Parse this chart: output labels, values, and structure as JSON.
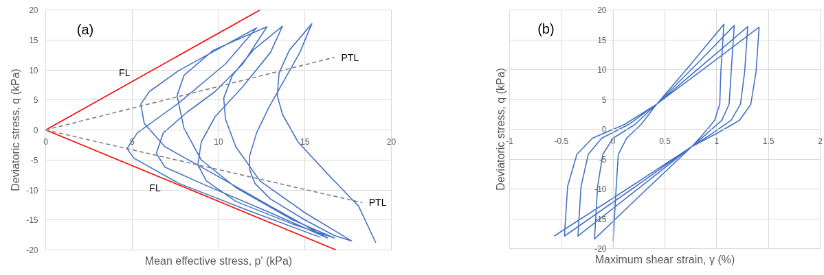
{
  "chart_data": [
    {
      "type": "line",
      "xlabel": "Mean effective stress, p' (kPa)",
      "ylabel": "Deviatoric stress, q (kPa)",
      "xlim": [
        0,
        20
      ],
      "ylim": [
        -20,
        20
      ],
      "xticks": [
        0,
        5,
        10,
        15,
        20
      ],
      "yticks": [
        -20,
        -15,
        -10,
        -5,
        0,
        5,
        10,
        15,
        20
      ],
      "grid": true,
      "series": [
        {
          "color": "#4472c4",
          "x": [
            19.1,
            18.1,
            16.3,
            14.6,
            13.7,
            13.4,
            13.5,
            14.1,
            15.4,
            14.7,
            13.8,
            12.9,
            12.2,
            11.8,
            11.8,
            12.1,
            13.0,
            15.0,
            16.7,
            17.7,
            15.0,
            12.4,
            11.0,
            10.4,
            10.3,
            10.8,
            12.0,
            13.7,
            13.0,
            11.4,
            9.8,
            9.0,
            8.8,
            9.3,
            11.0,
            14.3,
            16.7,
            14.3,
            11.0,
            9.0,
            8.0,
            7.6,
            8.0,
            9.7,
            12.8,
            11.4,
            9.8,
            8.2,
            6.8,
            6.4,
            6.9,
            9.0,
            13.0,
            16.3,
            13.0,
            9.7,
            6.9,
            5.7,
            5.5,
            6.0,
            7.7,
            12.2,
            10.4,
            7.7,
            5.3,
            4.7,
            5.1,
            7.7,
            11.7,
            15.9
          ],
          "values": [
            -18.8,
            -12.7,
            -7.3,
            -2.0,
            2.6,
            5.7,
            9.5,
            13.3,
            17.7,
            12.9,
            8.3,
            3.7,
            -0.5,
            -4.3,
            -6.6,
            -8.9,
            -11.5,
            -15.0,
            -17.6,
            -18.5,
            -13.8,
            -8.5,
            -2.8,
            1.8,
            5.3,
            9.1,
            13.3,
            17.3,
            12.9,
            7.2,
            2.2,
            -2.0,
            -5.8,
            -8.5,
            -11.9,
            -15.7,
            -18.0,
            -15.0,
            -9.6,
            -5.0,
            0.3,
            5.7,
            9.1,
            13.3,
            17.2,
            11.0,
            6.4,
            3.0,
            -0.5,
            -3.9,
            -6.2,
            -8.9,
            -13.8,
            -18.0,
            -12.7,
            -7.3,
            -2.8,
            1.1,
            4.3,
            6.4,
            9.9,
            17.0,
            11.0,
            4.5,
            -0.5,
            -3.1,
            -4.7,
            -8.9,
            -13.4,
            -17.9
          ]
        },
        {
          "name": "FL",
          "color": "#ff0000",
          "x": [
            0,
            12.4
          ],
          "values": [
            0,
            20
          ]
        },
        {
          "name": "FL",
          "color": "#ff0000",
          "x": [
            0,
            16.8
          ],
          "values": [
            0,
            -20
          ]
        },
        {
          "name": "PTL",
          "color": "#7f7f7f",
          "line_style": "dashed",
          "x": [
            0,
            16.7
          ],
          "values": [
            0,
            12.1
          ]
        },
        {
          "name": "PTL",
          "color": "#7f7f7f",
          "line_style": "dashed",
          "x": [
            0,
            18.3
          ],
          "values": [
            0,
            -12.1
          ]
        }
      ],
      "annotations": [
        "(a)"
      ]
    },
    {
      "type": "line",
      "xlabel": "Maximum shear strain, γ (%)",
      "ylabel": "Deviatoric stress, q (kPa)",
      "xlim": [
        -1,
        2
      ],
      "ylim": [
        -20,
        20
      ],
      "xticks": [
        -1,
        -0.5,
        0,
        0.5,
        1,
        1.5,
        2
      ],
      "yticks": [
        -20,
        -15,
        -10,
        -5,
        0,
        5,
        10,
        15,
        20
      ],
      "grid": true,
      "series": [
        {
          "color": "#4472c4",
          "x": [
            -0.57,
            0.1,
            0.76,
            0.99,
            1.22,
            1.33,
            1.38,
            1.41,
            0.92,
            0.42,
            0.11,
            -0.2,
            -0.35,
            -0.44,
            -0.47,
            0.15,
            0.76,
            0.95,
            1.14,
            1.23,
            1.27,
            1.3,
            0.86,
            0.42,
            0.15,
            -0.11,
            -0.24,
            -0.31,
            -0.34,
            0.21,
            0.76,
            0.9,
            1.05,
            1.12,
            1.14,
            1.17,
            0.8,
            0.42,
            0.21,
            0.0,
            -0.1,
            -0.15,
            -0.18,
            0.29,
            0.76,
            0.87,
            0.98,
            1.03,
            1.04,
            1.07,
            0.75,
            0.42,
            0.27,
            0.13,
            0.05,
            0.03,
            0
          ],
          "values": [
            -17.9,
            -10.4,
            -2.9,
            -0.8,
            1.5,
            4.2,
            9.6,
            17.1,
            10.7,
            4.2,
            0.8,
            -1.5,
            -4.2,
            -9.6,
            -17.9,
            -10.4,
            -2.9,
            -0.8,
            1.5,
            4.2,
            9.6,
            17.2,
            10.7,
            4.2,
            0.8,
            -1.5,
            -4.2,
            -9.6,
            -17.9,
            -10.4,
            -2.9,
            -0.8,
            1.5,
            4.2,
            9.6,
            17.4,
            10.8,
            4.2,
            0.8,
            -1.5,
            -4.2,
            -9.6,
            -18.4,
            -10.6,
            -2.9,
            -0.8,
            1.5,
            4.2,
            9.6,
            17.6,
            10.9,
            4.2,
            0.8,
            -1.5,
            -4.2,
            -9.6,
            -18.8
          ]
        }
      ],
      "annotations": [
        "(b)"
      ]
    }
  ]
}
